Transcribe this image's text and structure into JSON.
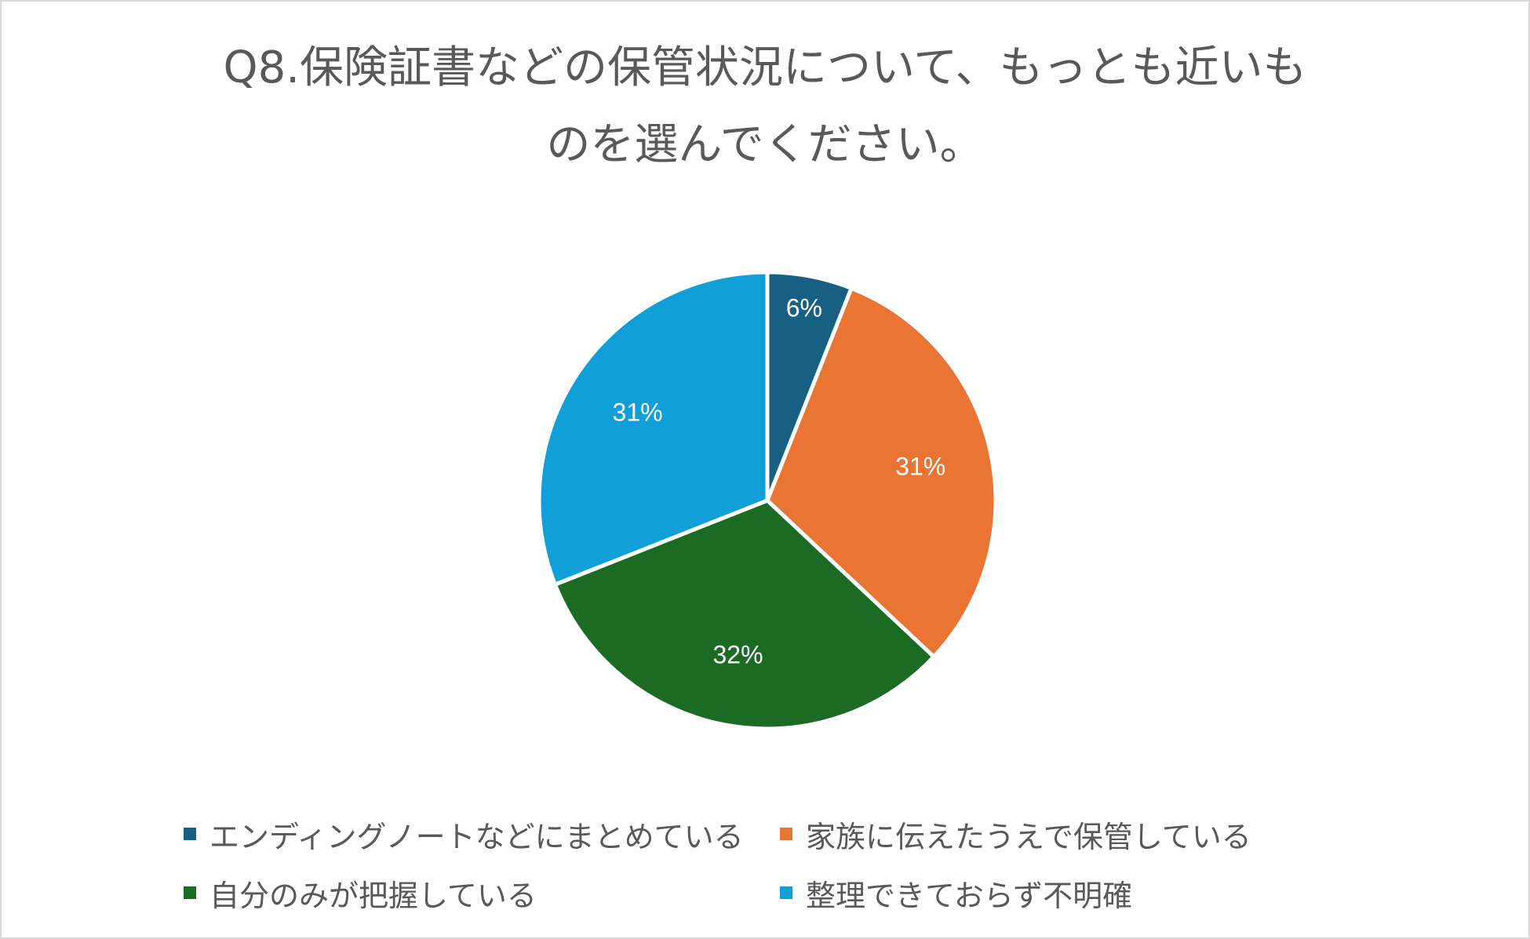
{
  "chart_data": {
    "type": "pie",
    "title_lines": [
      "Q8.保険証書などの保管状況について、もっとも近いも",
      "のを選んでください。"
    ],
    "categories": [
      "エンディングノートなどにまとめている",
      "家族に伝えたうえで保管している",
      "自分のみが把握している",
      "整理できておらず不明確"
    ],
    "values": [
      6,
      31,
      32,
      31
    ],
    "value_labels": [
      "6%",
      "31%",
      "32%",
      "31%"
    ],
    "colors": [
      "#175f83",
      "#e97434",
      "#1c6b24",
      "#119fd8"
    ],
    "legend_position": "bottom"
  }
}
